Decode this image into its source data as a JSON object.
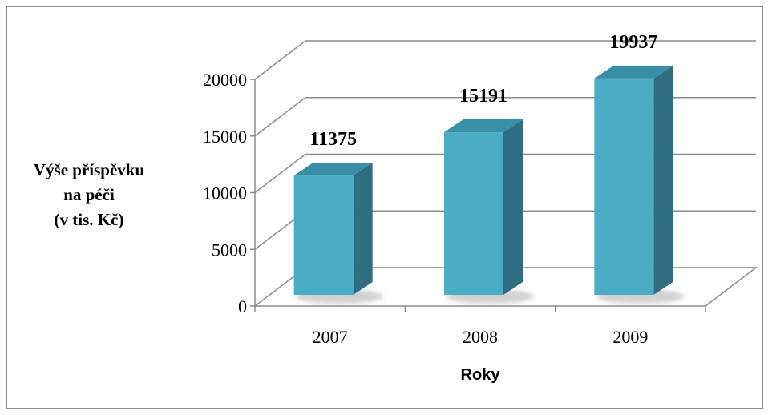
{
  "chart_data": {
    "type": "bar",
    "categories": [
      "2007",
      "2008",
      "2009"
    ],
    "values": [
      11375,
      15191,
      19937
    ],
    "data_labels": [
      "11375",
      "15191",
      "19937"
    ],
    "xlabel": "Roky",
    "ylabel_lines": [
      "Výše příspěvku",
      "na péči",
      "(v tis. Kč)"
    ],
    "yticks": [
      0,
      5000,
      10000,
      15000,
      20000
    ],
    "ytick_labels": [
      "0",
      "5000",
      "10000",
      "15000",
      "20000"
    ],
    "ylim": [
      0,
      20000
    ],
    "grid": true,
    "style": "3d-column",
    "colors": {
      "front": "#4BACC6",
      "side": "#2E6E80",
      "top": "#3A8FA6",
      "grid": "#8c8c8c",
      "text": "#000000"
    }
  }
}
